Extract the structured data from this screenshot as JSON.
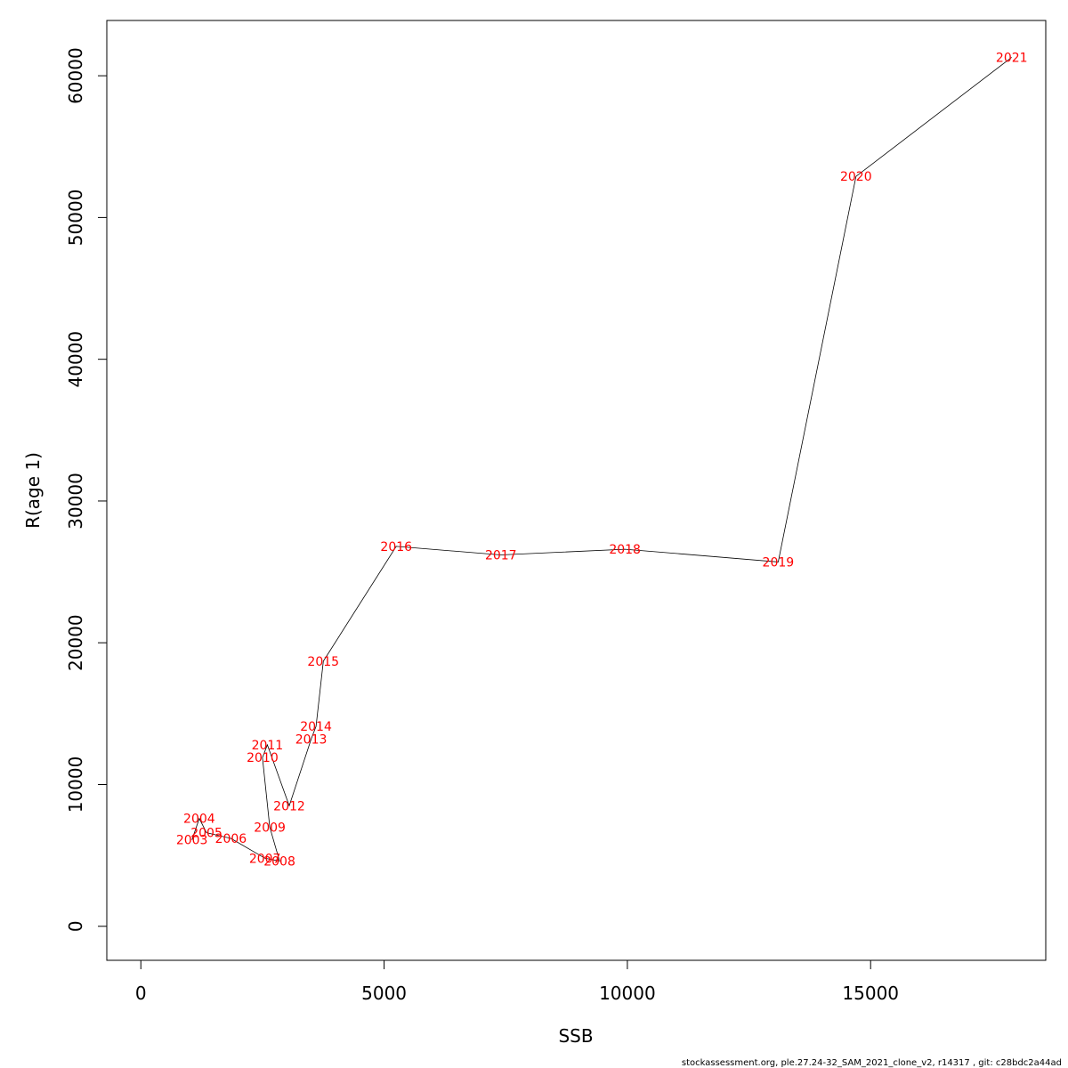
{
  "chart_data": {
    "type": "line",
    "title": "",
    "xlabel": "SSB",
    "ylabel": "R(age 1)",
    "xlim": [
      -700,
      18600
    ],
    "ylim": [
      -2400,
      63900
    ],
    "x_ticks": [
      0,
      5000,
      10000,
      15000
    ],
    "y_ticks": [
      0,
      10000,
      20000,
      30000,
      40000,
      50000,
      60000
    ],
    "grid": false,
    "point_marker": "year-label",
    "series": [
      {
        "points": [
          {
            "label": "2003",
            "x": 1050,
            "y": 6100
          },
          {
            "label": "2004",
            "x": 1200,
            "y": 7600
          },
          {
            "label": "2005",
            "x": 1350,
            "y": 6600
          },
          {
            "label": "2006",
            "x": 1850,
            "y": 6200
          },
          {
            "label": "2007",
            "x": 2550,
            "y": 4800
          },
          {
            "label": "2008",
            "x": 2850,
            "y": 4600
          },
          {
            "label": "2009",
            "x": 2650,
            "y": 7000
          },
          {
            "label": "2010",
            "x": 2500,
            "y": 11900
          },
          {
            "label": "2011",
            "x": 2600,
            "y": 12800
          },
          {
            "label": "2012",
            "x": 3050,
            "y": 8500
          },
          {
            "label": "2013",
            "x": 3500,
            "y": 13200
          },
          {
            "label": "2014",
            "x": 3600,
            "y": 14100
          },
          {
            "label": "2015",
            "x": 3750,
            "y": 18700
          },
          {
            "label": "2016",
            "x": 5250,
            "y": 26800
          },
          {
            "label": "2017",
            "x": 7400,
            "y": 26200
          },
          {
            "label": "2018",
            "x": 9950,
            "y": 26600
          },
          {
            "label": "2019",
            "x": 13100,
            "y": 25700
          },
          {
            "label": "2020",
            "x": 14700,
            "y": 52900
          },
          {
            "label": "2021",
            "x": 17900,
            "y": 61300
          }
        ]
      }
    ]
  },
  "footer": {
    "text": "stockassessment.org, ple.27.24-32_SAM_2021_clone_v2, r14317 , git: c28bdc2a44ad"
  },
  "colors": {
    "point_label": "#ff0000",
    "line": "#000000",
    "axis": "#000000"
  }
}
